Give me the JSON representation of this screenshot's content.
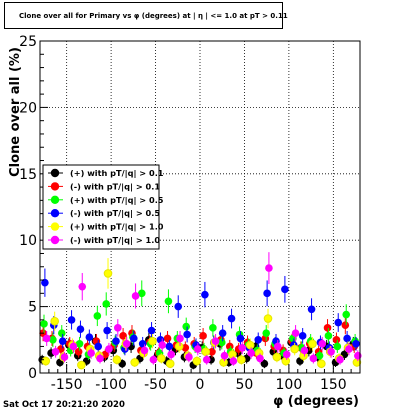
{
  "chart_data": {
    "type": "scatter",
    "title": "Clone  over all for Primary vs φ (degrees) at | η | <= 1.0 at pT > 0.11",
    "xlabel": "φ (degrees)",
    "ylabel": "Clone  over all (%)",
    "xlim": [
      -180,
      180
    ],
    "ylim": [
      0,
      25
    ],
    "x_ticks": [
      -150,
      -100,
      -50,
      0,
      50,
      100,
      150
    ],
    "y_ticks": [
      0,
      5,
      10,
      15,
      20,
      25
    ],
    "grid": true,
    "legend_position": "left",
    "series": [
      {
        "name": "(+) with pT/|q| > 0.1",
        "color": "#000000",
        "points": [
          [
            -175,
            1.0
          ],
          [
            -165,
            1.5
          ],
          [
            -155,
            0.8
          ],
          [
            -145,
            2.1
          ],
          [
            -135,
            1.3
          ],
          [
            -125,
            0.9
          ],
          [
            -115,
            2.4
          ],
          [
            -105,
            1.2
          ],
          [
            -95,
            1.7
          ],
          [
            -85,
            0.7
          ],
          [
            -75,
            2.0
          ],
          [
            -65,
            1.1
          ],
          [
            -55,
            2.5
          ],
          [
            -45,
            1.4
          ],
          [
            -35,
            0.9
          ],
          [
            -25,
            1.8
          ],
          [
            -15,
            1.2
          ],
          [
            -5,
            0.6
          ],
          [
            5,
            1.9
          ],
          [
            15,
            1.0
          ],
          [
            25,
            2.2
          ],
          [
            35,
            0.8
          ],
          [
            45,
            1.5
          ],
          [
            55,
            1.1
          ],
          [
            65,
            2.0
          ],
          [
            75,
            0.7
          ],
          [
            85,
            1.6
          ],
          [
            95,
            1.3
          ],
          [
            105,
            2.3
          ],
          [
            115,
            0.9
          ],
          [
            125,
            1.7
          ],
          [
            135,
            1.2
          ],
          [
            145,
            2.0
          ],
          [
            155,
            0.8
          ],
          [
            165,
            1.4
          ],
          [
            175,
            2.2
          ]
        ]
      },
      {
        "name": "(-) with pT/|q| > 0.1",
        "color": "#ff0000",
        "points": [
          [
            -175,
            3.0
          ],
          [
            -165,
            2.6
          ],
          [
            -155,
            1.8
          ],
          [
            -145,
            2.2
          ],
          [
            -135,
            1.6
          ],
          [
            -125,
            2.0
          ],
          [
            -115,
            2.4
          ],
          [
            -105,
            1.4
          ],
          [
            -95,
            2.1
          ],
          [
            -85,
            2.8
          ],
          [
            -75,
            3.0
          ],
          [
            -65,
            1.7
          ],
          [
            -55,
            2.3
          ],
          [
            -45,
            1.5
          ],
          [
            -35,
            2.6
          ],
          [
            -25,
            2.1
          ],
          [
            -15,
            1.9
          ],
          [
            -5,
            2.2
          ],
          [
            5,
            2.8
          ],
          [
            15,
            1.6
          ],
          [
            25,
            2.5
          ],
          [
            35,
            2.0
          ],
          [
            45,
            1.8
          ],
          [
            55,
            2.3
          ],
          [
            65,
            1.5
          ],
          [
            75,
            2.6
          ],
          [
            85,
            2.0
          ],
          [
            95,
            1.7
          ],
          [
            105,
            2.4
          ],
          [
            115,
            1.9
          ],
          [
            125,
            2.2
          ],
          [
            135,
            1.6
          ],
          [
            145,
            3.4
          ],
          [
            155,
            2.5
          ],
          [
            165,
            3.6
          ],
          [
            175,
            2.0
          ]
        ]
      },
      {
        "name": "(+) with pT/|q| > 0.5",
        "color": "#00ff00",
        "points": [
          [
            -175,
            3.7
          ],
          [
            -165,
            2.5
          ],
          [
            -155,
            3.0
          ],
          [
            -145,
            1.7
          ],
          [
            -135,
            2.2
          ],
          [
            -125,
            1.4
          ],
          [
            -115,
            4.3
          ],
          [
            -105,
            5.2
          ],
          [
            -95,
            2.3
          ],
          [
            -85,
            1.9
          ],
          [
            -75,
            2.7
          ],
          [
            -65,
            6.0
          ],
          [
            -55,
            2.2
          ],
          [
            -45,
            1.5
          ],
          [
            -35,
            5.4
          ],
          [
            -25,
            2.6
          ],
          [
            -15,
            3.5
          ],
          [
            -5,
            2.0
          ],
          [
            5,
            1.8
          ],
          [
            15,
            3.4
          ],
          [
            25,
            2.3
          ],
          [
            35,
            1.6
          ],
          [
            45,
            2.9
          ],
          [
            55,
            2.1
          ],
          [
            65,
            1.7
          ],
          [
            75,
            3.0
          ],
          [
            85,
            2.2
          ],
          [
            95,
            1.5
          ],
          [
            105,
            2.6
          ],
          [
            115,
            1.9
          ],
          [
            125,
            2.4
          ],
          [
            135,
            1.3
          ],
          [
            145,
            2.8
          ],
          [
            155,
            2.0
          ],
          [
            165,
            4.4
          ],
          [
            175,
            2.4
          ]
        ]
      },
      {
        "name": "(-) with pT/|q| > 0.5",
        "color": "#0000ff",
        "points": [
          [
            -175,
            6.8
          ],
          [
            -165,
            3.6
          ],
          [
            -155,
            2.4
          ],
          [
            -145,
            4.0
          ],
          [
            -135,
            3.3
          ],
          [
            -125,
            2.7
          ],
          [
            -115,
            2.0
          ],
          [
            -105,
            3.2
          ],
          [
            -95,
            2.4
          ],
          [
            -85,
            1.8
          ],
          [
            -75,
            2.6
          ],
          [
            -65,
            2.2
          ],
          [
            -55,
            3.2
          ],
          [
            -45,
            2.5
          ],
          [
            -35,
            2.0
          ],
          [
            -25,
            5.0
          ],
          [
            -15,
            2.9
          ],
          [
            -5,
            2.1
          ],
          [
            5,
            5.9
          ],
          [
            15,
            2.3
          ],
          [
            25,
            3.0
          ],
          [
            35,
            4.1
          ],
          [
            45,
            2.6
          ],
          [
            55,
            1.9
          ],
          [
            65,
            2.5
          ],
          [
            75,
            6.0
          ],
          [
            85,
            2.4
          ],
          [
            95,
            6.3
          ],
          [
            105,
            2.1
          ],
          [
            115,
            2.8
          ],
          [
            125,
            4.8
          ],
          [
            135,
            2.3
          ],
          [
            145,
            1.9
          ],
          [
            155,
            3.8
          ],
          [
            165,
            2.6
          ],
          [
            175,
            2.2
          ]
        ]
      },
      {
        "name": "(+) with pT/|q| > 1.0",
        "color": "#ffff00",
        "points": [
          [
            -175,
            0.9
          ],
          [
            -165,
            3.9
          ],
          [
            -155,
            1.2
          ],
          [
            -145,
            2.1
          ],
          [
            -135,
            0.6
          ],
          [
            -125,
            1.8
          ],
          [
            -115,
            1.3
          ],
          [
            -105,
            7.5
          ],
          [
            -95,
            1.0
          ],
          [
            -85,
            2.2
          ],
          [
            -75,
            0.8
          ],
          [
            -65,
            1.5
          ],
          [
            -55,
            2.4
          ],
          [
            -45,
            1.1
          ],
          [
            -35,
            0.7
          ],
          [
            -25,
            2.0
          ],
          [
            -15,
            1.3
          ],
          [
            -5,
            0.9
          ],
          [
            5,
            1.6
          ],
          [
            15,
            2.3
          ],
          [
            25,
            0.8
          ],
          [
            35,
            1.4
          ],
          [
            45,
            1.0
          ],
          [
            55,
            2.1
          ],
          [
            65,
            1.5
          ],
          [
            75,
            4.1
          ],
          [
            85,
            1.2
          ],
          [
            95,
            0.9
          ],
          [
            105,
            1.8
          ],
          [
            115,
            1.3
          ],
          [
            125,
            2.2
          ],
          [
            135,
            0.7
          ],
          [
            145,
            1.6
          ],
          [
            155,
            1.1
          ],
          [
            165,
            1.9
          ],
          [
            175,
            0.8
          ]
        ]
      },
      {
        "name": "(-) with pT/|q| > 1.0",
        "color": "#ff00ff",
        "points": [
          [
            -175,
            2.6
          ],
          [
            -165,
            1.6
          ],
          [
            -155,
            1.2
          ],
          [
            -145,
            2.0
          ],
          [
            -135,
            6.5
          ],
          [
            -125,
            1.5
          ],
          [
            -115,
            1.1
          ],
          [
            -105,
            1.8
          ],
          [
            -95,
            3.4
          ],
          [
            -85,
            2.2
          ],
          [
            -75,
            5.8
          ],
          [
            -65,
            1.7
          ],
          [
            -55,
            1.0
          ],
          [
            -45,
            2.1
          ],
          [
            -35,
            1.4
          ],
          [
            -25,
            2.6
          ],
          [
            -15,
            1.2
          ],
          [
            -5,
            1.8
          ],
          [
            5,
            1.0
          ],
          [
            15,
            2.4
          ],
          [
            25,
            1.3
          ],
          [
            35,
            0.9
          ],
          [
            45,
            1.9
          ],
          [
            55,
            1.5
          ],
          [
            65,
            1.1
          ],
          [
            75,
            7.9
          ],
          [
            85,
            2.0
          ],
          [
            95,
            1.4
          ],
          [
            105,
            3.0
          ],
          [
            115,
            1.7
          ],
          [
            125,
            1.1
          ],
          [
            135,
            2.2
          ],
          [
            145,
            1.6
          ],
          [
            155,
            1.0
          ],
          [
            165,
            1.8
          ],
          [
            175,
            1.3
          ]
        ]
      }
    ],
    "datestamp": "Sat Oct 17 20:21:20 2020"
  }
}
